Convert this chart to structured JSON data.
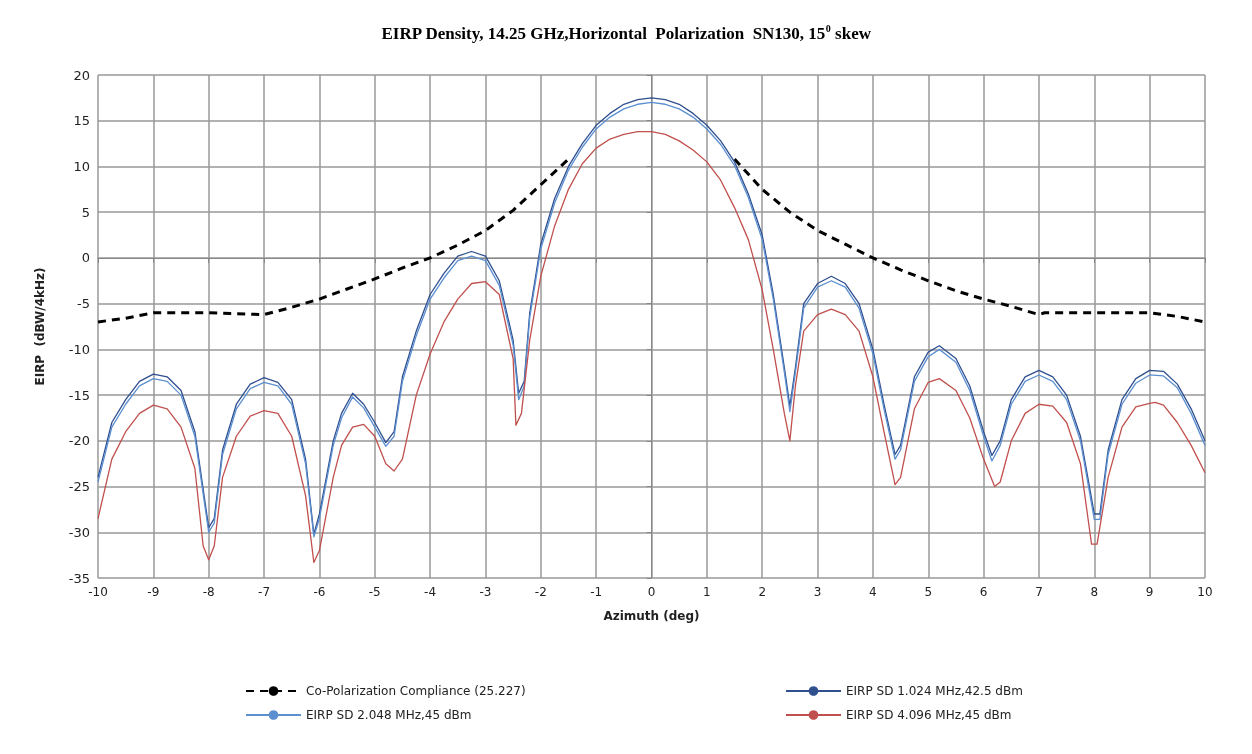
{
  "chart_data": {
    "type": "line",
    "title": "EIRP Density, 14.25 GHz,Horizontal  Polarization  SN130, 15$^{0}$ skew",
    "xlabel": "Azimuth (deg)",
    "ylabel": "EIRP  (dBW/4kHz)",
    "xlim": [
      -10,
      10
    ],
    "xticks": [
      -10,
      -9,
      -8,
      -7,
      -6,
      -5,
      -4,
      -3,
      -2,
      -1,
      0,
      1,
      2,
      3,
      4,
      5,
      6,
      7,
      8,
      9,
      10
    ],
    "ylim": [
      -35,
      20
    ],
    "yticks": [
      -35,
      -30,
      -25,
      -20,
      -15,
      -10,
      -5,
      0,
      5,
      10,
      15,
      20
    ],
    "grid": true,
    "legend": "bottom",
    "marker": "none",
    "series": [
      {
        "name": "Co-Polarization Compliance (25.227)",
        "color": "#000000",
        "line_style": "dashed",
        "x": [
          -10,
          -9.5,
          -9,
          -8,
          -7,
          -6.5,
          -6,
          -5.5,
          -5,
          -4.5,
          -4,
          -3.5,
          -3,
          -2.5,
          -2,
          -1.5,
          0,
          1.5,
          2,
          2.5,
          3,
          3.5,
          4,
          4.5,
          5,
          5.5,
          6,
          6.5,
          7,
          7.1,
          8,
          9,
          9.5,
          10
        ],
        "values": [
          -7,
          -6.6,
          -6,
          -6,
          -6.2,
          -5.4,
          -4.5,
          -3.4,
          -2.3,
          -1.1,
          0,
          1.4,
          3,
          5.2,
          8,
          10.8,
          null,
          10.8,
          7.5,
          5,
          3,
          1.5,
          0,
          -1.3,
          -2.5,
          -3.6,
          -4.5,
          -5.3,
          -6.2,
          -6,
          -6,
          -6,
          -6.4,
          -7
        ]
      },
      {
        "name": "EIRP SD 1.024 MHz,42.5 dBm",
        "color": "#2f4f8f",
        "line_style": "solid",
        "x": [
          -10,
          -9.75,
          -9.5,
          -9.25,
          -9,
          -8.75,
          -8.5,
          -8.25,
          -8,
          -7.9,
          -7.75,
          -7.5,
          -7.25,
          -7,
          -6.75,
          -6.5,
          -6.25,
          -6.1,
          -6,
          -5.75,
          -5.6,
          -5.4,
          -5.2,
          -5,
          -4.8,
          -4.65,
          -4.5,
          -4.25,
          -4,
          -3.75,
          -3.5,
          -3.25,
          -3,
          -2.75,
          -2.5,
          -2.4,
          -2.3,
          -2.2,
          -2,
          -1.75,
          -1.5,
          -1.25,
          -1,
          -0.75,
          -0.5,
          -0.25,
          0,
          0.25,
          0.5,
          0.75,
          1,
          1.25,
          1.5,
          1.75,
          2,
          2.2,
          2.4,
          2.5,
          2.6,
          2.75,
          3,
          3.25,
          3.5,
          3.75,
          4,
          4.2,
          4.4,
          4.5,
          4.75,
          5,
          5.2,
          5.5,
          5.75,
          6,
          6.15,
          6.3,
          6.5,
          6.75,
          7,
          7.25,
          7.5,
          7.75,
          8,
          8.1,
          8.25,
          8.5,
          8.75,
          9,
          9.25,
          9.5,
          9.75,
          10
        ],
        "values": [
          -24,
          -18,
          -15.5,
          -13.5,
          -12.7,
          -13,
          -14.5,
          -19,
          -29.5,
          -28.5,
          -21,
          -16,
          -13.8,
          -13.1,
          -13.6,
          -15.5,
          -22,
          -30.2,
          -28,
          -20,
          -17,
          -14.8,
          -16,
          -18,
          -20.2,
          -19,
          -13,
          -8,
          -4,
          -1.7,
          0.2,
          0.7,
          0.2,
          -2.5,
          -9,
          -14.8,
          -13.5,
          -6,
          1.5,
          6.5,
          10,
          12.5,
          14.5,
          15.8,
          16.8,
          17.3,
          17.5,
          17.3,
          16.8,
          15.8,
          14.5,
          12.8,
          10.5,
          7,
          2.5,
          -4,
          -12,
          -16.2,
          -12,
          -5,
          -2.8,
          -2,
          -2.8,
          -5,
          -10,
          -16,
          -21.5,
          -20.5,
          -13,
          -10.3,
          -9.6,
          -11,
          -14,
          -19,
          -21.6,
          -20,
          -15.5,
          -13,
          -12.3,
          -13,
          -15,
          -19.5,
          -28,
          -28,
          -21,
          -15.5,
          -13.2,
          -12.3,
          -12.4,
          -13.8,
          -16.5,
          -20
        ]
      },
      {
        "name": "EIRP SD 2.048 MHz,45 dBm",
        "color": "#5b8fd0",
        "line_style": "solid",
        "x": [
          -10,
          -9.75,
          -9.5,
          -9.25,
          -9,
          -8.75,
          -8.5,
          -8.25,
          -8,
          -7.9,
          -7.75,
          -7.5,
          -7.25,
          -7,
          -6.75,
          -6.5,
          -6.25,
          -6.1,
          -6,
          -5.75,
          -5.6,
          -5.4,
          -5.2,
          -5,
          -4.8,
          -4.65,
          -4.5,
          -4.25,
          -4,
          -3.75,
          -3.5,
          -3.25,
          -3,
          -2.75,
          -2.5,
          -2.4,
          -2.3,
          -2.2,
          -2,
          -1.75,
          -1.5,
          -1.25,
          -1,
          -0.75,
          -0.5,
          -0.25,
          0,
          0.25,
          0.5,
          0.75,
          1,
          1.25,
          1.5,
          1.75,
          2,
          2.2,
          2.4,
          2.5,
          2.6,
          2.75,
          3,
          3.25,
          3.5,
          3.75,
          4,
          4.2,
          4.4,
          4.5,
          4.75,
          5,
          5.2,
          5.5,
          5.75,
          6,
          6.15,
          6.3,
          6.5,
          6.75,
          7,
          7.25,
          7.5,
          7.75,
          8,
          8.1,
          8.25,
          8.5,
          8.75,
          9,
          9.25,
          9.5,
          9.75,
          10
        ],
        "values": [
          -24.5,
          -18.5,
          -16,
          -14,
          -13.2,
          -13.5,
          -15,
          -19.5,
          -30,
          -29,
          -21.5,
          -16.5,
          -14.3,
          -13.6,
          -14,
          -16,
          -22.5,
          -30.5,
          -28.5,
          -20.5,
          -17.5,
          -15.2,
          -16.4,
          -18.5,
          -20.6,
          -19.5,
          -13.5,
          -8.5,
          -4.5,
          -2.2,
          -0.3,
          0.2,
          -0.3,
          -3,
          -9.5,
          -15.5,
          -14,
          -6.5,
          1,
          6,
          9.6,
          12.1,
          14.1,
          15.4,
          16.3,
          16.8,
          17,
          16.8,
          16.3,
          15.4,
          14.1,
          12.4,
          10.1,
          6.6,
          2,
          -4.5,
          -12.5,
          -16.8,
          -12.5,
          -5.5,
          -3.2,
          -2.5,
          -3.2,
          -5.5,
          -10.5,
          -16.5,
          -22,
          -21,
          -13.5,
          -10.8,
          -10,
          -11.4,
          -14.5,
          -19.5,
          -22.2,
          -20.5,
          -16,
          -13.5,
          -12.8,
          -13.5,
          -15.5,
          -20,
          -28.6,
          -28.6,
          -21.5,
          -16,
          -13.7,
          -12.8,
          -12.9,
          -14.2,
          -17,
          -20.5
        ]
      },
      {
        "name": "EIRP SD 4.096 MHz,45 dBm",
        "color": "#c0504d",
        "line_style": "solid",
        "x": [
          -10,
          -9.75,
          -9.5,
          -9.25,
          -9,
          -8.75,
          -8.5,
          -8.25,
          -8.1,
          -8,
          -7.9,
          -7.75,
          -7.5,
          -7.25,
          -7,
          -6.75,
          -6.5,
          -6.25,
          -6.1,
          -6,
          -5.75,
          -5.6,
          -5.4,
          -5.2,
          -5,
          -4.8,
          -4.65,
          -4.5,
          -4.25,
          -4,
          -3.75,
          -3.5,
          -3.25,
          -3,
          -2.75,
          -2.5,
          -2.45,
          -2.35,
          -2.2,
          -2,
          -1.75,
          -1.5,
          -1.25,
          -1,
          -0.75,
          -0.5,
          -0.25,
          0,
          0.25,
          0.5,
          0.75,
          1,
          1.25,
          1.5,
          1.75,
          2,
          2.2,
          2.4,
          2.5,
          2.6,
          2.75,
          3,
          3.25,
          3.5,
          3.75,
          4,
          4.2,
          4.4,
          4.5,
          4.75,
          5,
          5.2,
          5.5,
          5.75,
          6,
          6.2,
          6.3,
          6.5,
          6.75,
          7,
          7.25,
          7.5,
          7.75,
          7.95,
          8.05,
          8.25,
          8.5,
          8.75,
          9,
          9.1,
          9.25,
          9.5,
          9.75,
          10
        ],
        "values": [
          -28.5,
          -22,
          -19,
          -17,
          -16.1,
          -16.5,
          -18.5,
          -23,
          -31.5,
          -33,
          -31.5,
          -24,
          -19.5,
          -17.3,
          -16.7,
          -17,
          -19.5,
          -26,
          -33.3,
          -32,
          -24,
          -20.5,
          -18.5,
          -18.2,
          -19.5,
          -22.5,
          -23.3,
          -22,
          -15,
          -10.5,
          -7,
          -4.5,
          -2.8,
          -2.6,
          -4,
          -11,
          -18.3,
          -17,
          -9,
          -2,
          3.5,
          7.5,
          10.3,
          12,
          13,
          13.5,
          13.8,
          13.8,
          13.5,
          12.8,
          11.8,
          10.5,
          8.5,
          5.5,
          2,
          -3.5,
          -10,
          -17,
          -20,
          -14,
          -8,
          -6.2,
          -5.6,
          -6.2,
          -8,
          -13,
          -19,
          -24.8,
          -24,
          -16.5,
          -13.6,
          -13.2,
          -14.5,
          -17.5,
          -22,
          -25,
          -24.5,
          -20,
          -17,
          -16,
          -16.2,
          -18,
          -22.5,
          -31.3,
          -31.3,
          -24,
          -18.5,
          -16.3,
          -15.9,
          -15.8,
          -16.1,
          -18,
          -20.5,
          -23.5
        ]
      }
    ]
  }
}
